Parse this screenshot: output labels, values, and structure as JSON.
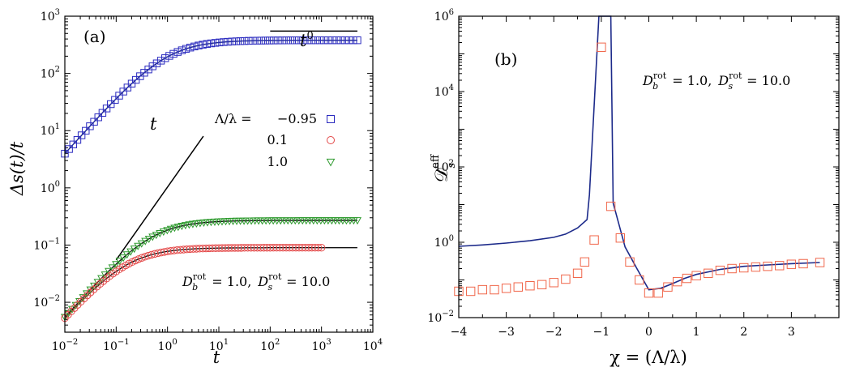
{
  "chart_data": [
    {
      "type": "scatter",
      "panel_label": "(a)",
      "xscale": "log",
      "yscale": "log",
      "xlim": [
        0.01,
        10000
      ],
      "ylim": [
        0.003,
        1000
      ],
      "xlabel": "t",
      "ylabel": "Δs(t)/t",
      "xticks": [
        {
          "base": "10",
          "exp": "−2",
          "value": 0.01
        },
        {
          "base": "10",
          "exp": "−1",
          "value": 0.1
        },
        {
          "base": "10",
          "exp": "0",
          "value": 1
        },
        {
          "base": "10",
          "exp": "1",
          "value": 10
        },
        {
          "base": "10",
          "exp": "2",
          "value": 100
        },
        {
          "base": "10",
          "exp": "3",
          "value": 1000
        },
        {
          "base": "10",
          "exp": "4",
          "value": 10000
        }
      ],
      "yticks": [
        {
          "base": "10",
          "exp": "−2",
          "value": 0.01
        },
        {
          "base": "10",
          "exp": "−1",
          "value": 0.1
        },
        {
          "base": "10",
          "exp": "0",
          "value": 1
        },
        {
          "base": "10",
          "exp": "1",
          "value": 10
        },
        {
          "base": "10",
          "exp": "2",
          "value": 100
        },
        {
          "base": "10",
          "exp": "3",
          "value": 1000
        }
      ],
      "legend_title": "Λ/λ =",
      "legend_placement": "center-right",
      "series": [
        {
          "name": "−0.95",
          "marker": "square",
          "color": "#2b2bbf",
          "plateau": 380,
          "t_cross": 0.95
        },
        {
          "name": "0.1",
          "marker": "circle",
          "color": "#e34848",
          "plateau": 0.09,
          "t_cross": 0.16
        },
        {
          "name": "1.0",
          "marker": "triangle-down",
          "color": "#2e9a2e",
          "plateau": 0.27,
          "t_cross": 0.48
        }
      ],
      "slope_guides": [
        {
          "label": "t",
          "t_from": 0.1,
          "t_to": 5,
          "y_from": 0.055,
          "y_to": 8
        },
        {
          "label": "t",
          "exponent": "0",
          "t_from": 100,
          "t_to": 5000,
          "y": 550
        }
      ],
      "annotation": {
        "a": "D",
        "a_sub": "b",
        "a_sup": "rot",
        "a_val": " = 1.0,",
        "b": "D",
        "b_sub": "s",
        "b_sup": "rot",
        "b_val": " = 10.0"
      }
    },
    {
      "type": "line",
      "panel_label": "(b)",
      "xscale": "linear",
      "yscale": "log",
      "xlim": [
        -4,
        4
      ],
      "ylim": [
        0.01,
        1000000
      ],
      "xlabel": "χ = (Λ/λ)",
      "ylabel": "Ds eff",
      "ylabel_parts": {
        "main": "𝒟",
        "sub": "s",
        "sup": "eff"
      },
      "xticks": [
        "−4",
        "−3",
        "−2",
        "−1",
        "0",
        "1",
        "2",
        "3"
      ],
      "xtick_values": [
        -4,
        -3,
        -2,
        -1,
        0,
        1,
        2,
        3
      ],
      "yticks": [
        {
          "base": "10",
          "exp": "−2",
          "value": 0.01
        },
        {
          "base": "10",
          "exp": "0",
          "value": 1
        },
        {
          "base": "10",
          "exp": "2",
          "value": 100
        },
        {
          "base": "10",
          "exp": "4",
          "value": 10000
        },
        {
          "base": "10",
          "exp": "6",
          "value": 1000000
        }
      ],
      "line": {
        "color": "#1c2a8a",
        "x": [
          -4.0,
          -3.5,
          -3.0,
          -2.5,
          -2.0,
          -1.75,
          -1.5,
          -1.3,
          -1.25,
          -1.05,
          -1.0,
          -0.8,
          -0.75,
          -0.5,
          -0.25,
          0.0,
          0.25,
          0.5,
          0.75,
          1.0,
          1.5,
          2.0,
          2.5,
          3.0,
          3.6
        ],
        "y": [
          0.78,
          0.85,
          0.95,
          1.1,
          1.35,
          1.65,
          2.4,
          4.0,
          18,
          1000000,
          1000000,
          1000000,
          11,
          0.75,
          0.2,
          0.055,
          0.06,
          0.08,
          0.11,
          0.14,
          0.19,
          0.23,
          0.25,
          0.27,
          0.29
        ]
      },
      "points": {
        "color": "#f0664a",
        "marker": "square",
        "x": [
          -4.0,
          -3.75,
          -3.5,
          -3.25,
          -3.0,
          -2.75,
          -2.5,
          -2.25,
          -2.0,
          -1.75,
          -1.5,
          -1.35,
          -1.15,
          -1.0,
          -0.8,
          -0.6,
          -0.4,
          -0.2,
          0.0,
          0.2,
          0.4,
          0.6,
          0.8,
          1.0,
          1.25,
          1.5,
          1.75,
          2.0,
          2.25,
          2.5,
          2.75,
          3.0,
          3.25,
          3.6
        ],
        "y": [
          0.05,
          0.05,
          0.055,
          0.055,
          0.06,
          0.065,
          0.07,
          0.075,
          0.085,
          0.105,
          0.15,
          0.3,
          1.15,
          150000,
          9,
          1.3,
          0.3,
          0.1,
          0.045,
          0.045,
          0.065,
          0.09,
          0.11,
          0.13,
          0.15,
          0.18,
          0.2,
          0.21,
          0.22,
          0.23,
          0.24,
          0.26,
          0.27,
          0.29
        ]
      },
      "annotation": {
        "a": "D",
        "a_sub": "b",
        "a_sup": "rot",
        "a_val": " = 1.0,",
        "b": "D",
        "b_sub": "s",
        "b_sup": "rot",
        "b_val": " = 10.0"
      }
    }
  ]
}
